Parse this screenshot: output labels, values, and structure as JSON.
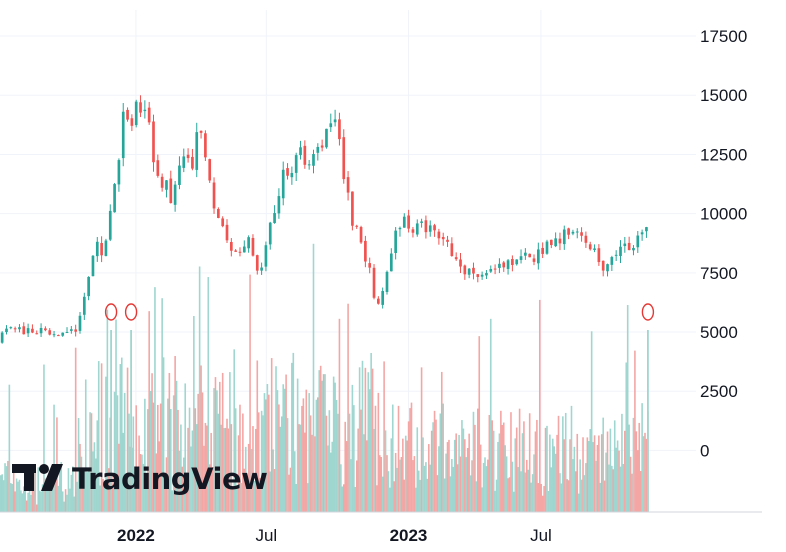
{
  "chart_data": {
    "type": "candlestick",
    "brand": "TradingView",
    "colors": {
      "up": "#26a69a",
      "down": "#ef5350",
      "volume_up": "#9fd6cf",
      "volume_down": "#f4a6a4",
      "grid": "#f0f3fa",
      "marker": "#e53935"
    },
    "price_axis": {
      "ticks": [
        17500,
        15000,
        12500,
        10000,
        7500,
        5000,
        2500,
        0
      ],
      "range": [
        -2600,
        18600
      ]
    },
    "time_axis": {
      "labels": [
        {
          "text": "2022",
          "bold": true,
          "t": 0.197
        },
        {
          "text": "Jul",
          "bold": false,
          "t": 0.386
        },
        {
          "text": "2023",
          "bold": true,
          "t": 0.592
        },
        {
          "text": "Jul",
          "bold": false,
          "t": 0.784
        }
      ]
    },
    "price_path": [
      [
        0.0,
        4600
      ],
      [
        0.01,
        5350
      ],
      [
        0.03,
        5050
      ],
      [
        0.06,
        5000
      ],
      [
        0.09,
        5000
      ],
      [
        0.11,
        5020
      ],
      [
        0.115,
        5500
      ],
      [
        0.13,
        7700
      ],
      [
        0.14,
        8700
      ],
      [
        0.148,
        8400
      ],
      [
        0.155,
        9000
      ],
      [
        0.16,
        10100
      ],
      [
        0.168,
        11500
      ],
      [
        0.176,
        13500
      ],
      [
        0.182,
        14800
      ],
      [
        0.188,
        13800
      ],
      [
        0.194,
        13600
      ],
      [
        0.2,
        15500
      ],
      [
        0.206,
        14000
      ],
      [
        0.212,
        14600
      ],
      [
        0.218,
        13300
      ],
      [
        0.224,
        12200
      ],
      [
        0.232,
        11100
      ],
      [
        0.24,
        11800
      ],
      [
        0.248,
        10200
      ],
      [
        0.256,
        11800
      ],
      [
        0.264,
        12300
      ],
      [
        0.272,
        12600
      ],
      [
        0.278,
        11600
      ],
      [
        0.286,
        13300
      ],
      [
        0.294,
        13400
      ],
      [
        0.302,
        11800
      ],
      [
        0.31,
        10400
      ],
      [
        0.318,
        9800
      ],
      [
        0.326,
        9300
      ],
      [
        0.334,
        8300
      ],
      [
        0.342,
        8300
      ],
      [
        0.35,
        8300
      ],
      [
        0.358,
        9000
      ],
      [
        0.366,
        8300
      ],
      [
        0.374,
        7300
      ],
      [
        0.382,
        8000
      ],
      [
        0.39,
        9300
      ],
      [
        0.398,
        10200
      ],
      [
        0.406,
        11000
      ],
      [
        0.414,
        12000
      ],
      [
        0.422,
        11600
      ],
      [
        0.43,
        12200
      ],
      [
        0.438,
        12600
      ],
      [
        0.446,
        11800
      ],
      [
        0.454,
        12800
      ],
      [
        0.462,
        12700
      ],
      [
        0.47,
        13200
      ],
      [
        0.478,
        14000
      ],
      [
        0.486,
        14300
      ],
      [
        0.492,
        13300
      ],
      [
        0.498,
        11800
      ],
      [
        0.504,
        10800
      ],
      [
        0.512,
        9300
      ],
      [
        0.52,
        9200
      ],
      [
        0.528,
        8300
      ],
      [
        0.534,
        7800
      ],
      [
        0.54,
        6800
      ],
      [
        0.546,
        5800
      ],
      [
        0.552,
        6500
      ],
      [
        0.558,
        7500
      ],
      [
        0.566,
        8000
      ],
      [
        0.574,
        9200
      ],
      [
        0.582,
        9700
      ],
      [
        0.59,
        9700
      ],
      [
        0.598,
        8900
      ],
      [
        0.606,
        9700
      ],
      [
        0.614,
        9400
      ],
      [
        0.622,
        9300
      ],
      [
        0.63,
        9400
      ],
      [
        0.638,
        8600
      ],
      [
        0.646,
        8800
      ],
      [
        0.654,
        8200
      ],
      [
        0.662,
        7800
      ],
      [
        0.67,
        7600
      ],
      [
        0.678,
        7700
      ],
      [
        0.686,
        7500
      ],
      [
        0.694,
        7400
      ],
      [
        0.702,
        7500
      ],
      [
        0.71,
        7700
      ],
      [
        0.718,
        7600
      ],
      [
        0.726,
        8000
      ],
      [
        0.734,
        7800
      ],
      [
        0.742,
        7900
      ],
      [
        0.75,
        8100
      ],
      [
        0.758,
        8200
      ],
      [
        0.766,
        8000
      ],
      [
        0.774,
        8200
      ],
      [
        0.782,
        8500
      ],
      [
        0.79,
        8500
      ],
      [
        0.798,
        8900
      ],
      [
        0.806,
        8800
      ],
      [
        0.814,
        9000
      ],
      [
        0.82,
        9800
      ],
      [
        0.826,
        8800
      ],
      [
        0.834,
        9200
      ],
      [
        0.842,
        9200
      ],
      [
        0.85,
        9000
      ],
      [
        0.858,
        8600
      ],
      [
        0.864,
        8200
      ],
      [
        0.87,
        7800
      ],
      [
        0.878,
        7600
      ],
      [
        0.886,
        8300
      ],
      [
        0.894,
        8300
      ],
      [
        0.902,
        8500
      ],
      [
        0.91,
        8600
      ],
      [
        0.918,
        8700
      ],
      [
        0.926,
        9000
      ],
      [
        0.934,
        9200
      ],
      [
        0.94,
        9600
      ]
    ],
    "candle_count": 150,
    "volume_markers": [
      0.161,
      0.19,
      0.939
    ]
  }
}
